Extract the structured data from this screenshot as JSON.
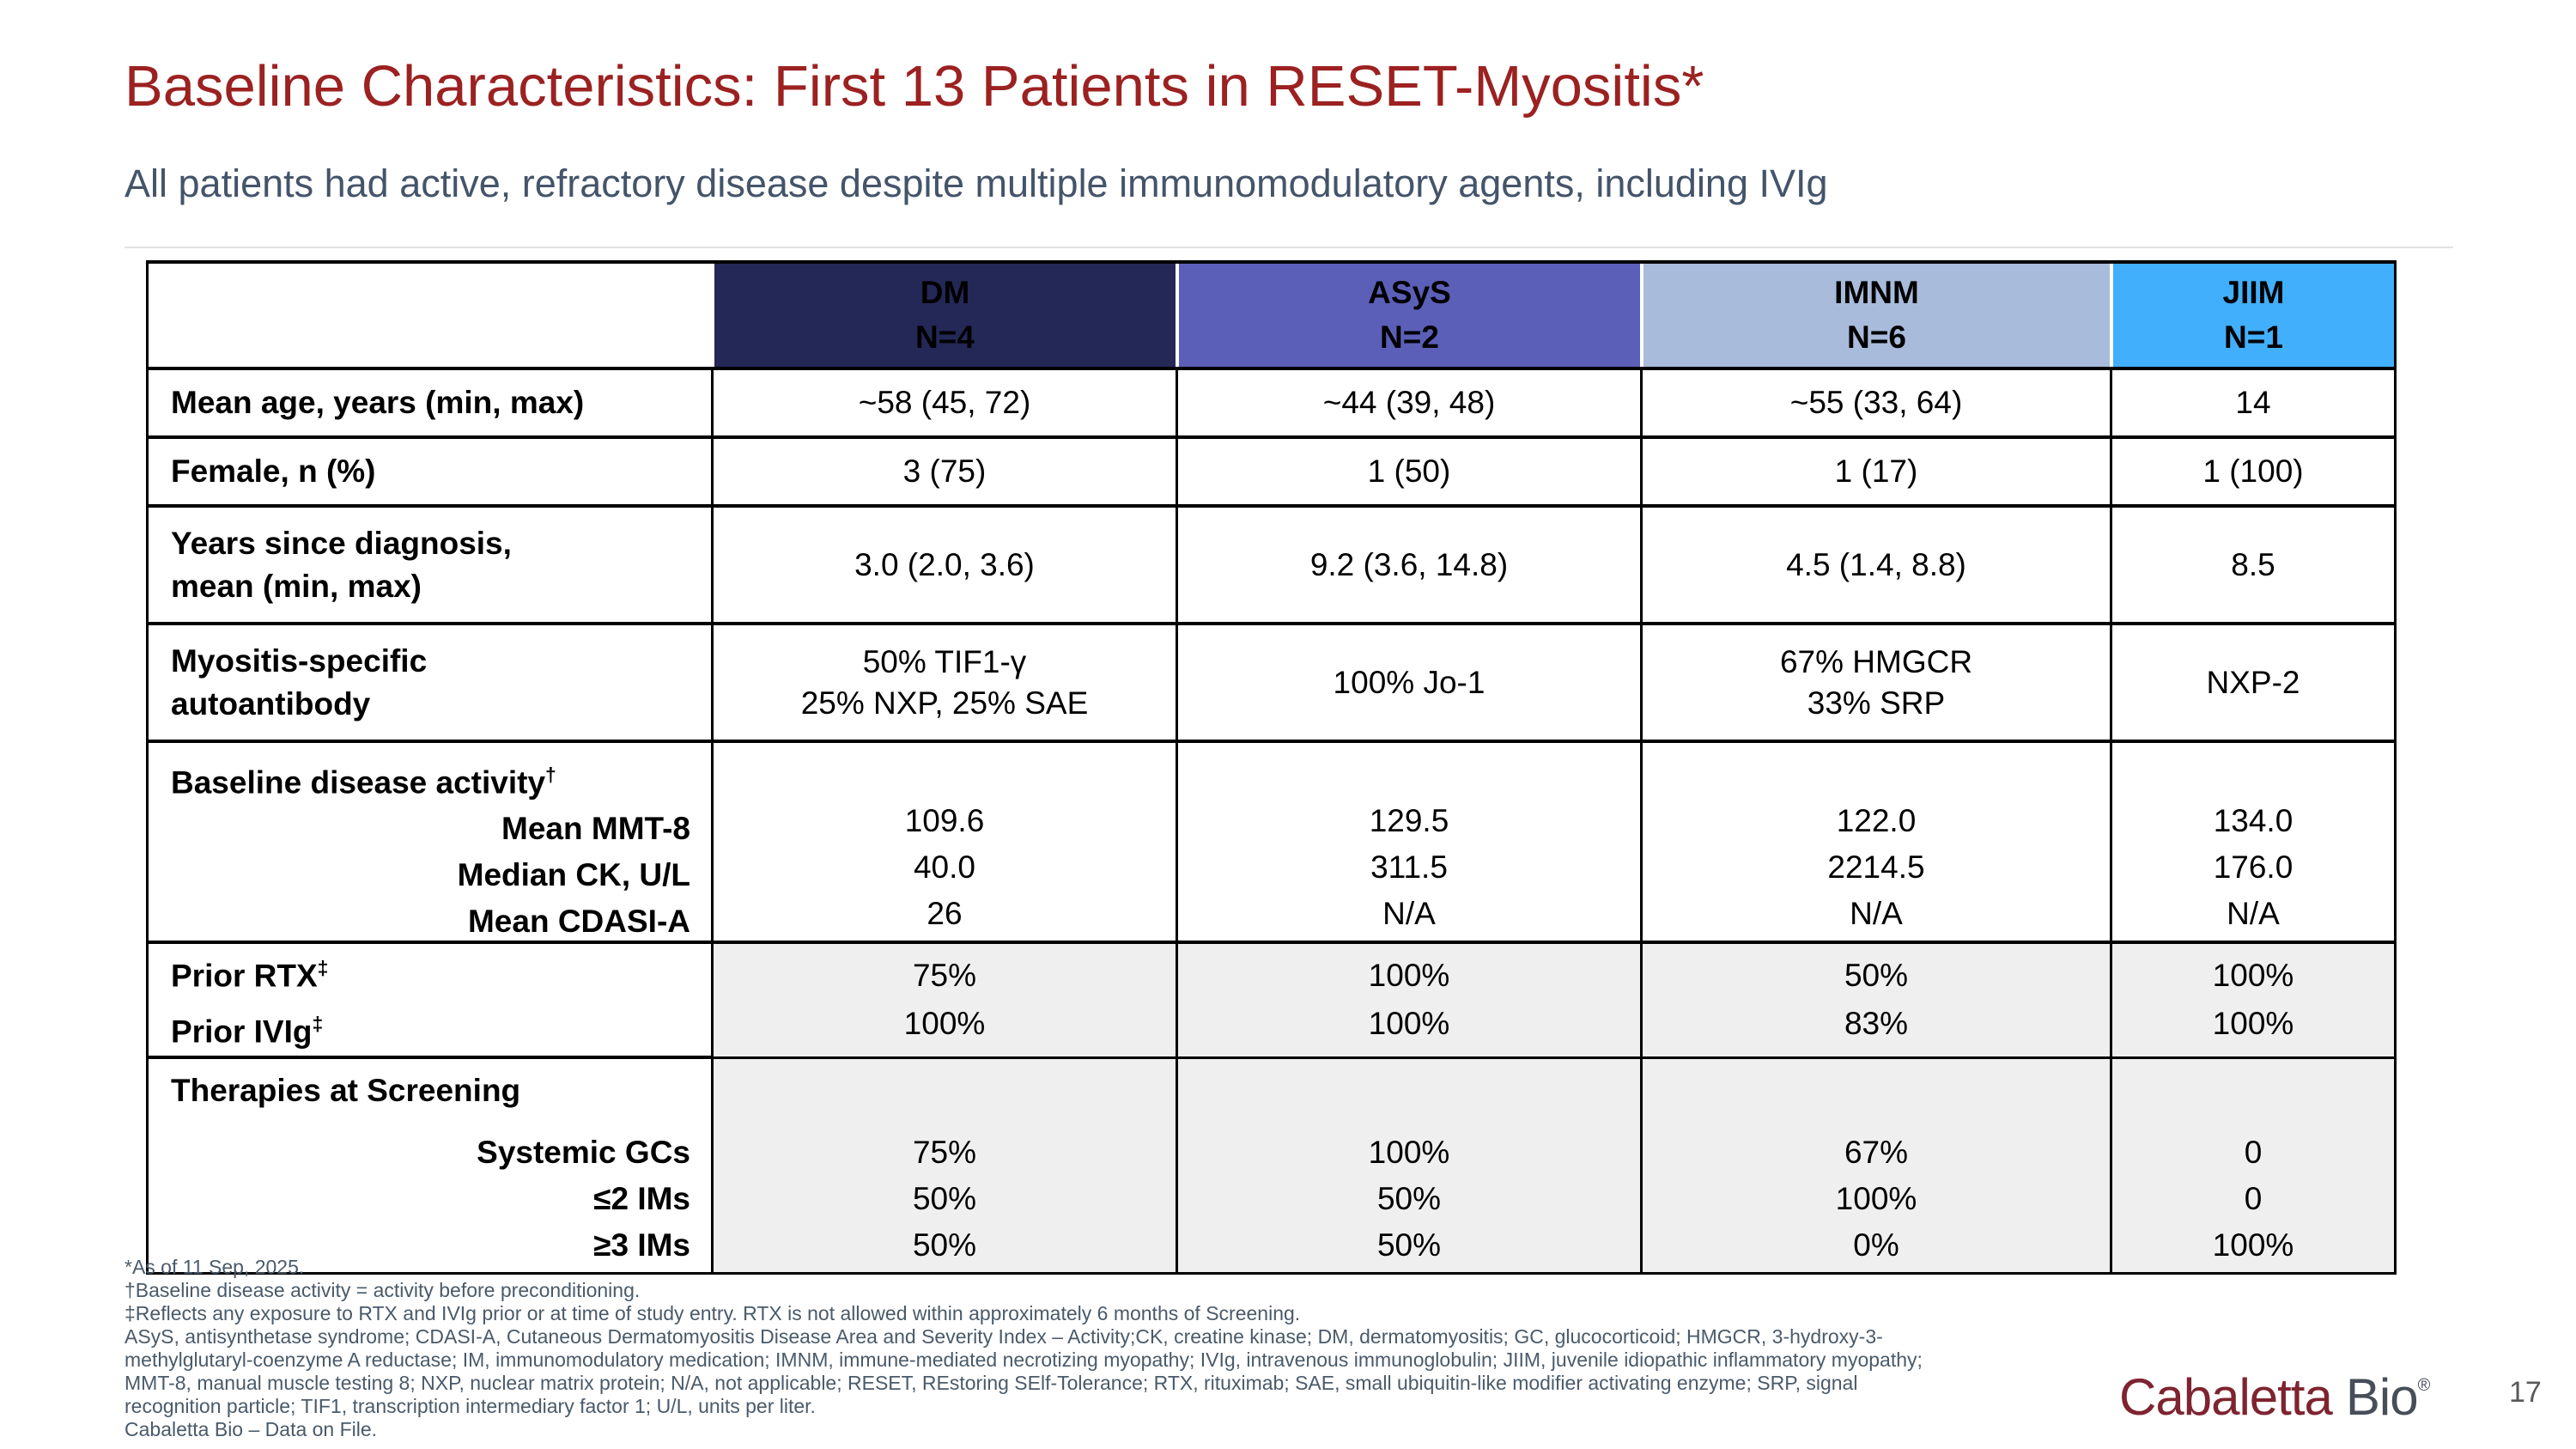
{
  "slide": {
    "title": "Baseline Characteristics: First 13 Patients in RESET-Myositis*",
    "subtitle": "All patients had active, refractory disease despite multiple immunomodulatory agents, including IVIg",
    "page_number": "17",
    "logo": {
      "brand": "Cabaletta",
      "suffix": "Bio",
      "registered": "®"
    },
    "colors": {
      "title_red": "#9C2121",
      "subtitle_gray_blue": "#44546A",
      "header_dm": "#242857",
      "header_asys": "#5B5FB8",
      "header_imnm": "#A9BBDB",
      "header_jiim": "#41AFFB",
      "shaded_cell": "#EFEFEF",
      "logo_maroon": "#7E2430",
      "logo_gray": "#474E58"
    }
  },
  "table": {
    "header": {
      "cols": [
        {
          "name": "DM",
          "n": "N=4"
        },
        {
          "name": "ASyS",
          "n": "N=2"
        },
        {
          "name": "IMNM",
          "n": "N=6"
        },
        {
          "name": "JIIM",
          "n": "N=1"
        }
      ]
    },
    "rows": {
      "mean_age": {
        "label": "Mean age, years (min, max)",
        "dm": "~58 (45, 72)",
        "asys": "~44 (39, 48)",
        "imnm": "~55 (33, 64)",
        "jiim": "14"
      },
      "female": {
        "label": "Female, n (%)",
        "dm": "3 (75)",
        "asys": "1 (50)",
        "imnm": "1 (17)",
        "jiim": "1 (100)"
      },
      "years_since_dx": {
        "label_line1": "Years since diagnosis,",
        "label_line2": "mean (min, max)",
        "dm": "3.0 (2.0, 3.6)",
        "asys": "9.2 (3.6, 14.8)",
        "imnm": "4.5 (1.4, 8.8)",
        "jiim": "8.5"
      },
      "autoantibody": {
        "label_line1": "Myositis-specific",
        "label_line2": "autoantibody",
        "dm_line1": "50% TIF1-γ",
        "dm_line2": "25% NXP, 25% SAE",
        "asys": "100% Jo-1",
        "imnm_line1": "67% HMGCR",
        "imnm_line2": "33% SRP",
        "jiim": "NXP-2"
      },
      "disease_activity": {
        "label": "Baseline disease activity",
        "label_sup": "†",
        "sub1": "Mean MMT-8",
        "sub2": "Median CK, U/L",
        "sub3": "Mean CDASI-A",
        "dm": [
          "109.6",
          "40.0",
          "26"
        ],
        "asys": [
          "129.5",
          "311.5",
          "N/A"
        ],
        "imnm": [
          "122.0",
          "2214.5",
          "N/A"
        ],
        "jiim": [
          "134.0",
          "176.0",
          "N/A"
        ]
      },
      "prior_therapy": {
        "label1": "Prior RTX",
        "label1_sup": "‡",
        "label2": "Prior IVIg",
        "label2_sup": "‡",
        "dm": [
          "75%",
          "100%"
        ],
        "asys": [
          "100%",
          "100%"
        ],
        "imnm": [
          "50%",
          "83%"
        ],
        "jiim": [
          "100%",
          "100%"
        ]
      },
      "therapies_screening": {
        "label": "Therapies at Screening",
        "sub1": "Systemic GCs",
        "sub2": "≤2 IMs",
        "sub3": "≥3 IMs",
        "dm": [
          "75%",
          "50%",
          "50%"
        ],
        "asys": [
          "100%",
          "50%",
          "50%"
        ],
        "imnm": [
          "67%",
          "100%",
          "0%"
        ],
        "jiim": [
          "0",
          "0",
          "100%"
        ]
      }
    }
  },
  "footnotes": [
    "*As of 11 Sep, 2025.",
    "†Baseline disease activity = activity before preconditioning.",
    "‡Reflects any exposure to RTX and IVIg prior or at time of study entry. RTX is not allowed within approximately 6 months of Screening.",
    "ASyS, antisynthetase syndrome; CDASI-A, Cutaneous Dermatomyositis Disease Area and Severity Index – Activity;CK, creatine kinase; DM, dermatomyositis; GC, glucocorticoid; HMGCR, 3-hydroxy-3-",
    "methylglutaryl-coenzyme A reductase; IM, immunomodulatory medication; IMNM, immune-mediated necrotizing myopathy; IVIg, intravenous immunoglobulin; JIIM, juvenile idiopathic inflammatory myopathy;",
    "MMT-8, manual muscle testing 8; NXP, nuclear matrix protein; N/A, not applicable; RESET, REstoring SElf-Tolerance; RTX, rituximab; SAE, small ubiquitin-like modifier activating enzyme; SRP, signal",
    "recognition particle; TIF1, transcription intermediary factor 1; U/L, units per liter.",
    "Cabaletta Bio – Data on File."
  ]
}
